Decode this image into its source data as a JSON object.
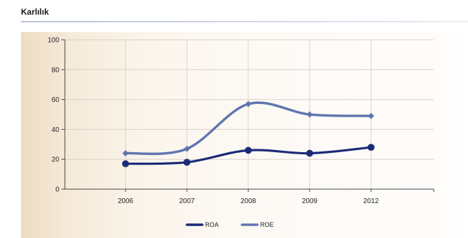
{
  "page": {
    "title": "Karlılık"
  },
  "chart_data": {
    "type": "line",
    "title": "",
    "xlabel": "",
    "ylabel": "",
    "categories": [
      "2006",
      "2007",
      "2008",
      "2009",
      "2012"
    ],
    "ylim": [
      0,
      100
    ],
    "yticks": [
      0,
      20,
      40,
      60,
      80,
      100
    ],
    "grid": true,
    "smooth": true,
    "legend_position": "bottom",
    "series": [
      {
        "name": "ROA",
        "values": [
          17,
          18,
          26,
          24,
          28
        ],
        "color": "#1c2b78",
        "marker": "circle"
      },
      {
        "name": "ROE",
        "values": [
          24,
          27,
          57,
          50,
          49
        ],
        "color": "#6076b0",
        "marker": "diamond"
      }
    ]
  }
}
